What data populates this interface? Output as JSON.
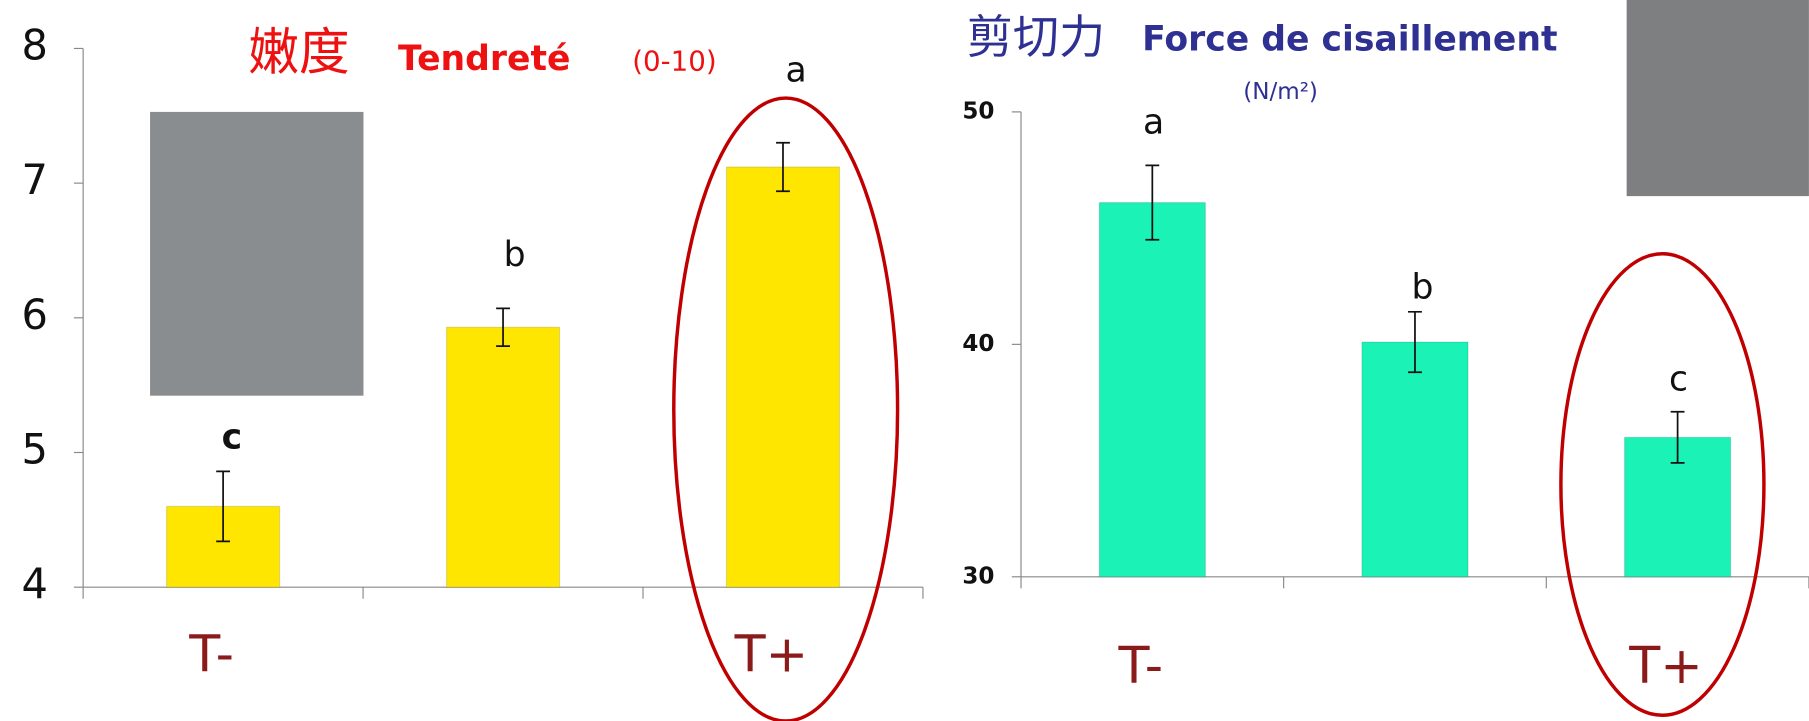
{
  "chart_data": [
    {
      "type": "bar",
      "title": "嫩度",
      "subtitle": "Tendreté",
      "unit": "(0-10)",
      "categories": [
        "T-",
        null,
        "T+"
      ],
      "values": [
        4.6,
        5.93,
        7.12
      ],
      "errors": [
        0.26,
        0.14,
        0.18
      ],
      "annotations": [
        "c",
        "b",
        "a"
      ],
      "color": "#ffe600",
      "ylim": [
        4,
        8
      ],
      "yticks": [
        4,
        5,
        6,
        7,
        8
      ]
    },
    {
      "type": "bar",
      "title": "剪切力",
      "subtitle": "Force de cisaillement",
      "unit": "(N/m²)",
      "categories": [
        "T-",
        null,
        "T+"
      ],
      "values": [
        46.1,
        40.1,
        36.0
      ],
      "errors": [
        1.6,
        1.3,
        1.1
      ],
      "annotations": [
        "a",
        "b",
        "c"
      ],
      "color": "#1af2b6",
      "ylim": [
        30,
        50
      ],
      "yticks": [
        30,
        40,
        50
      ]
    }
  ]
}
